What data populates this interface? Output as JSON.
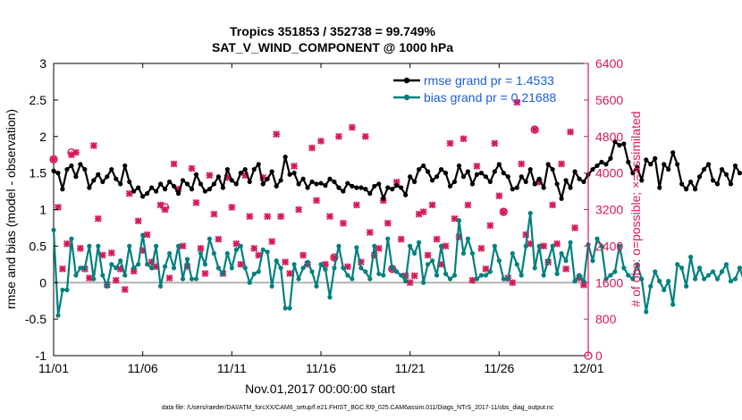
{
  "chart_data": {
    "type": "line",
    "title_line1": "Tropics 351853 / 352738 = 99.749%",
    "title_line2": "SAT_V_WIND_COMPONENT @ 1000 hPa",
    "xlabel": "Nov.01,2017 00:00:00 start",
    "ylabel_left": "rmse and bias (model - observation)",
    "ylabel_right": "# of obs: o=possible; ×=assimilated",
    "footer": "data file: /Users/raeder/DAI/ATM_forcXX/CAM6_setup/f.e21.FHIST_BGC.f09_025.CAM6assim.011/Diags_NTrS_2017-11/obs_diag_output.nc",
    "xlim": [
      0,
      30
    ],
    "ylim_left": [
      -1,
      3
    ],
    "ylim_right": [
      0,
      6400
    ],
    "x_ticks": [
      0,
      5,
      10,
      15,
      20,
      25,
      30
    ],
    "x_tick_labels": [
      "11/01",
      "11/06",
      "11/11",
      "11/16",
      "11/21",
      "11/26",
      "12/01"
    ],
    "y_left_ticks": [
      -1,
      -0.5,
      0,
      0.5,
      1,
      1.5,
      2,
      2.5,
      3
    ],
    "y_left_tick_labels": [
      "-1",
      "-0.5",
      "0",
      "0.5",
      "1",
      "1.5",
      "2",
      "2.5",
      "3"
    ],
    "y_right_ticks": [
      0,
      800,
      1600,
      2400,
      3200,
      4000,
      4800,
      5600,
      6400
    ],
    "y_right_tick_labels": [
      "0",
      "800",
      "1600",
      "2400",
      "3200",
      "4000",
      "4800",
      "5600",
      "6400"
    ],
    "legend": [
      {
        "label": "rmse grand pr = 1.4533",
        "color": "#000000"
      },
      {
        "label": "bias grand pr = 0.21688",
        "color": "#00807f"
      }
    ],
    "colors": {
      "rmse": "#000000",
      "bias": "#00807f",
      "obs": "#d6195a",
      "zero": "#b3b3b3",
      "right_axis": "#d6195a"
    },
    "step_days": 0.25,
    "rmse": [
      1.53,
      1.5,
      1.28,
      1.55,
      1.6,
      1.45,
      1.62,
      1.55,
      1.3,
      1.4,
      1.48,
      1.38,
      1.45,
      1.55,
      1.42,
      1.35,
      1.6,
      1.38,
      1.25,
      1.3,
      1.18,
      1.22,
      1.3,
      1.25,
      1.35,
      1.28,
      1.38,
      1.32,
      1.22,
      1.4,
      1.35,
      1.28,
      1.48,
      1.35,
      1.25,
      1.28,
      1.35,
      1.45,
      1.3,
      1.55,
      1.4,
      1.35,
      1.5,
      1.55,
      1.38,
      1.55,
      1.62,
      1.35,
      1.42,
      1.52,
      1.32,
      1.4,
      1.72,
      1.48,
      1.5,
      1.35,
      1.42,
      1.3,
      1.38,
      1.35,
      1.36,
      1.33,
      1.42,
      1.38,
      1.3,
      1.25,
      1.36,
      1.32,
      1.3,
      1.3,
      1.28,
      1.22,
      1.32,
      1.35,
      1.15,
      1.3,
      1.28,
      1.33,
      1.3,
      1.2,
      1.45,
      1.38,
      1.55,
      1.6,
      1.52,
      1.4,
      1.45,
      1.55,
      1.5,
      1.32,
      1.38,
      1.6,
      1.45,
      1.52,
      1.35,
      1.48,
      1.5,
      1.45,
      1.38,
      1.52,
      1.62,
      1.5,
      1.45,
      1.28,
      1.3,
      1.45,
      1.38,
      1.55,
      1.35,
      1.42,
      1.3,
      1.62,
      1.55,
      1.35,
      1.15,
      1.4,
      1.3,
      1.52,
      1.42,
      1.38,
      1.48,
      1.55,
      1.6,
      1.65,
      1.62,
      1.7,
      1.93,
      1.88,
      1.9,
      1.65,
      1.5,
      1.58,
      1.4,
      1.68,
      1.62,
      1.7,
      1.3,
      1.62,
      1.55,
      1.78,
      1.62,
      1.35,
      1.28,
      1.38,
      1.28,
      1.45,
      1.55,
      1.62,
      1.4,
      1.35,
      1.55,
      1.48,
      1.35,
      1.6,
      1.5,
      1.5,
      1.48,
      1.38,
      1.45,
      1.3,
      1.3
    ],
    "bias": [
      0.72,
      -0.45,
      -0.1,
      -0.1,
      0.6,
      0.1,
      0.2,
      0.2,
      0.5,
      0.05,
      0.5,
      0.1,
      -0.05,
      0.25,
      0.2,
      0.3,
      0.1,
      0.5,
      0.2,
      0.25,
      0.65,
      0.25,
      0.2,
      0.5,
      -0.05,
      0.22,
      0.4,
      0.2,
      0.5,
      0.05,
      0.32,
      0.05,
      0.05,
      0.4,
      0.25,
      0.6,
      0.4,
      0.2,
      0.12,
      0.4,
      0.2,
      0.45,
      0.5,
      0.2,
      0.0,
      0.12,
      0.15,
      0.45,
      0.42,
      -0.05,
      0.3,
      0.2,
      -0.35,
      -0.35,
      0.25,
      0.05,
      0.2,
      0.28,
      0.15,
      -0.05,
      0.25,
      0.18,
      -0.2,
      0.2,
      0.5,
      0.2,
      0.1,
      0.05,
      0.48,
      0.2,
      0.15,
      0.05,
      0.5,
      0.12,
      0.1,
      0.6,
      0.2,
      0.15,
      0.1,
      0.02,
      0.5,
      0.4,
      0.55,
      0.0,
      0.25,
      0.3,
      0.1,
      0.5,
      0.12,
      0.05,
      0.1,
      0.85,
      0.4,
      0.6,
      0.4,
      0.05,
      0.1,
      0.1,
      0.15,
      0.5,
      0.3,
      0.05,
      0.05,
      0.4,
      0.25,
      0.1,
      0.5,
      0.95,
      0.2,
      0.5,
      0.1,
      0.3,
      0.5,
      0.12,
      0.4,
      0.3,
      0.55,
      0.02,
      0.1,
      0.02,
      0.52,
      0.3,
      0.6,
      0.5,
      0.05,
      0.1,
      0.15,
      0.5,
      0.2,
      0.1,
      0.05,
      0.25,
      0.05,
      -0.4,
      -0.05,
      0.15,
      0.02,
      -0.1,
      0.02,
      -0.3,
      0.25,
      0.2,
      -0.05,
      0.35,
      0.05,
      0.2,
      0.05,
      0.1,
      0.15,
      0.05,
      0.15,
      0.25,
      0.02,
      0.05,
      0.2,
      0.02,
      0.1,
      0.25,
      0.4,
      0.35,
      0.2,
      0.1,
      0.45,
      0.4,
      -0.05
    ],
    "obs_assimilated": [
      [
        0.0,
        4300
      ],
      [
        0.25,
        3250
      ],
      [
        0.5,
        1900
      ],
      [
        0.75,
        2450
      ],
      [
        1.0,
        4400
      ],
      [
        1.25,
        4450
      ],
      [
        1.5,
        2350
      ],
      [
        1.75,
        1900
      ],
      [
        2.0,
        1700
      ],
      [
        2.25,
        4600
      ],
      [
        2.5,
        3000
      ],
      [
        2.75,
        2200
      ],
      [
        3.0,
        1550
      ],
      [
        3.25,
        2250
      ],
      [
        3.5,
        1650
      ],
      [
        3.75,
        1900
      ],
      [
        4.0,
        1450
      ],
      [
        4.25,
        3550
      ],
      [
        4.5,
        1850
      ],
      [
        4.75,
        2950
      ],
      [
        5.0,
        2300
      ],
      [
        5.25,
        2650
      ],
      [
        5.5,
        2050
      ],
      [
        5.75,
        1950
      ],
      [
        6.0,
        3300
      ],
      [
        6.25,
        3200
      ],
      [
        6.5,
        1700
      ],
      [
        6.75,
        4200
      ],
      [
        7.0,
        3650
      ],
      [
        7.25,
        2400
      ],
      [
        7.5,
        1950
      ],
      [
        7.75,
        4100
      ],
      [
        8.0,
        3350
      ],
      [
        8.25,
        2350
      ],
      [
        8.5,
        1800
      ],
      [
        8.75,
        3950
      ],
      [
        9.0,
        3100
      ],
      [
        9.25,
        2550
      ],
      [
        9.5,
        1800
      ],
      [
        9.75,
        3900
      ],
      [
        10.0,
        3250
      ],
      [
        10.25,
        2450
      ],
      [
        10.5,
        2000
      ],
      [
        10.75,
        3950
      ],
      [
        11.0,
        3050
      ],
      [
        11.25,
        2350
      ],
      [
        11.5,
        2200
      ],
      [
        11.75,
        3900
      ],
      [
        12.0,
        3050
      ],
      [
        12.25,
        2500
      ],
      [
        12.5,
        4850
      ],
      [
        12.75,
        3050
      ],
      [
        13.0,
        2050
      ],
      [
        13.25,
        1800
      ],
      [
        13.5,
        4150
      ],
      [
        13.75,
        3200
      ],
      [
        14.0,
        2200
      ],
      [
        14.25,
        2000
      ],
      [
        14.5,
        4550
      ],
      [
        14.75,
        3400
      ],
      [
        15.0,
        4700
      ],
      [
        15.25,
        2000
      ],
      [
        15.5,
        3050
      ],
      [
        15.75,
        2150
      ],
      [
        16.0,
        4800
      ],
      [
        16.25,
        2900
      ],
      [
        16.5,
        1950
      ],
      [
        16.75,
        5000
      ],
      [
        17.0,
        3300
      ],
      [
        17.25,
        2050
      ],
      [
        17.5,
        4800
      ],
      [
        17.75,
        2700
      ],
      [
        18.0,
        2200
      ],
      [
        18.25,
        2350
      ],
      [
        18.5,
        3400
      ],
      [
        18.75,
        2900
      ],
      [
        19.0,
        1900
      ],
      [
        19.25,
        3800
      ],
      [
        19.5,
        2550
      ],
      [
        19.75,
        1750
      ],
      [
        20.0,
        1600
      ],
      [
        20.25,
        1750
      ],
      [
        20.5,
        3100
      ],
      [
        20.75,
        3150
      ],
      [
        21.0,
        2200
      ],
      [
        21.25,
        3300
      ],
      [
        21.5,
        2550
      ],
      [
        21.75,
        2000
      ],
      [
        22.0,
        2400
      ],
      [
        22.25,
        4650
      ],
      [
        22.5,
        3000
      ],
      [
        22.75,
        2600
      ],
      [
        23.0,
        4750
      ],
      [
        23.25,
        3300
      ],
      [
        23.5,
        1650
      ],
      [
        23.75,
        4150
      ],
      [
        24.0,
        2350
      ],
      [
        24.25,
        1900
      ],
      [
        24.5,
        2850
      ],
      [
        24.75,
        4650
      ],
      [
        25.0,
        3500
      ],
      [
        25.25,
        3150
      ],
      [
        25.5,
        1700
      ],
      [
        25.75,
        1600
      ],
      [
        26.0,
        5550
      ],
      [
        26.25,
        4200
      ],
      [
        26.5,
        2650
      ],
      [
        26.75,
        2450
      ],
      [
        27.0,
        4950
      ],
      [
        27.25,
        3800
      ],
      [
        27.5,
        2400
      ],
      [
        27.75,
        2050
      ],
      [
        28.0,
        3300
      ],
      [
        28.25,
        2450
      ],
      [
        28.5,
        4200
      ],
      [
        28.75,
        1900
      ],
      [
        29.0,
        4900
      ],
      [
        29.25,
        2800
      ],
      [
        29.5,
        1700
      ],
      [
        29.75,
        1550
      ]
    ],
    "obs_possible": [
      [
        0.0,
        4300
      ],
      [
        1.0,
        4450
      ],
      [
        6.25,
        3250
      ],
      [
        15.75,
        2150
      ],
      [
        19.0,
        1900
      ],
      [
        25.25,
        3150
      ],
      [
        27.0,
        4950
      ],
      [
        30.0,
        0
      ]
    ]
  }
}
